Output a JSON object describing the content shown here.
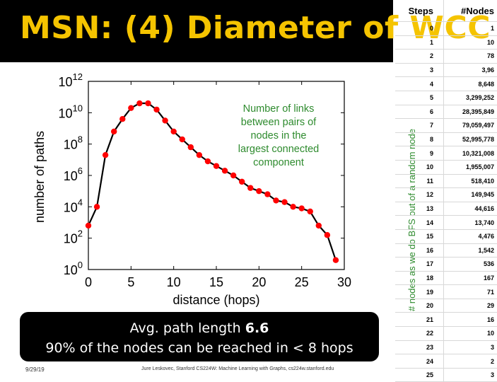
{
  "title": "MSN: (4) Diameter of WCC",
  "summary": {
    "line1_prefix": "Avg. path length ",
    "line1_value": "6.6",
    "line2": "90% of the nodes can be reached in < 8 hops"
  },
  "footer": {
    "date": "9/29/19",
    "credit": "Jure Leskovec, Stanford CS224W: Machine Learning with Graphs, cs224w.stanford.edu"
  },
  "side_label": "# nodes as we do BFS out of a random node",
  "table": {
    "headers": [
      "Steps",
      "#Nodes"
    ],
    "rows": [
      [
        "0",
        "1"
      ],
      [
        "1",
        "10"
      ],
      [
        "2",
        "78"
      ],
      [
        "3",
        "3,96"
      ],
      [
        "4",
        "8,648"
      ],
      [
        "5",
        "3,299,252"
      ],
      [
        "6",
        "28,395,849"
      ],
      [
        "7",
        "79,059,497"
      ],
      [
        "8",
        "52,995,778"
      ],
      [
        "9",
        "10,321,008"
      ],
      [
        "10",
        "1,955,007"
      ],
      [
        "11",
        "518,410"
      ],
      [
        "12",
        "149,945"
      ],
      [
        "13",
        "44,616"
      ],
      [
        "14",
        "13,740"
      ],
      [
        "15",
        "4,476"
      ],
      [
        "16",
        "1,542"
      ],
      [
        "17",
        "536"
      ],
      [
        "18",
        "167"
      ],
      [
        "19",
        "71"
      ],
      [
        "20",
        "29"
      ],
      [
        "21",
        "16"
      ],
      [
        "22",
        "10"
      ],
      [
        "23",
        "3"
      ],
      [
        "24",
        "2"
      ],
      [
        "25",
        "3"
      ]
    ]
  },
  "colors": {
    "title_text": "#f5c400",
    "marker": "#ff0000",
    "line": "#000000",
    "annotation": "#2e8b2e"
  },
  "chart_data": {
    "type": "line",
    "title": "",
    "xlabel": "distance (hops)",
    "ylabel": "number of paths",
    "xlim": [
      0,
      30
    ],
    "ylim_log10": [
      0,
      12
    ],
    "xticks": [
      "0",
      "5",
      "10",
      "15",
      "20",
      "25",
      "30"
    ],
    "yticks": [
      {
        "base": "10",
        "exp": "0",
        "log10": 0
      },
      {
        "base": "10",
        "exp": "2",
        "log10": 2
      },
      {
        "base": "10",
        "exp": "4",
        "log10": 4
      },
      {
        "base": "10",
        "exp": "6",
        "log10": 6
      },
      {
        "base": "10",
        "exp": "8",
        "log10": 8
      },
      {
        "base": "10",
        "exp": "10",
        "log10": 10
      },
      {
        "base": "10",
        "exp": "12",
        "log10": 12
      }
    ],
    "annotation": [
      "Number of links",
      "between pairs of",
      "nodes in the",
      "largest connected",
      "component"
    ],
    "series": [
      {
        "name": "paths",
        "x": [
          0,
          1,
          2,
          3,
          4,
          5,
          6,
          7,
          8,
          9,
          10,
          11,
          12,
          13,
          14,
          15,
          16,
          17,
          18,
          19,
          20,
          21,
          22,
          23,
          24,
          25,
          26,
          27,
          28,
          29
        ],
        "log10_y": [
          2.8,
          4.0,
          7.3,
          8.8,
          9.6,
          10.3,
          10.6,
          10.6,
          10.2,
          9.5,
          8.8,
          8.3,
          7.8,
          7.3,
          6.9,
          6.6,
          6.3,
          6.0,
          5.6,
          5.2,
          5.0,
          4.8,
          4.4,
          4.3,
          4.0,
          3.9,
          3.7,
          2.8,
          2.2,
          0.6
        ]
      }
    ]
  }
}
